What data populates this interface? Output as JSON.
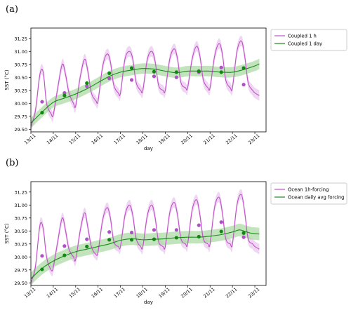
{
  "panels": [
    {
      "letter": "(a)",
      "ylabel": "SST (°C)",
      "xlabel": "day",
      "xticks": [
        "13/11",
        "14/11",
        "15/11",
        "16/11",
        "17/11",
        "18/11",
        "19/11",
        "20/11",
        "21/11",
        "22/11",
        "23/11"
      ],
      "yticks": [
        "29.50",
        "29.75",
        "30.00",
        "30.25",
        "30.50",
        "30.75",
        "31.00",
        "31.25"
      ]
    },
    {
      "letter": "(b)",
      "ylabel": "SST (°C)",
      "xlabel": "day",
      "xticks": [
        "13/11",
        "14/11",
        "15/11",
        "16/11",
        "17/11",
        "18/11",
        "19/11",
        "20/11",
        "21/11",
        "22/11",
        "23/11"
      ],
      "yticks": [
        "29.50",
        "29.75",
        "30.00",
        "30.25",
        "30.50",
        "30.75",
        "31.00",
        "31.25"
      ]
    }
  ],
  "colors": {
    "hourly": "#c050c8",
    "hourly_band": "#e9c8ee",
    "daily": "#1a8a1a",
    "daily_band": "#a8d8a0",
    "dots_daily": "#118811",
    "dots_hourly": "#b050c8"
  },
  "chart_data": [
    {
      "type": "line",
      "title": "",
      "xlabel": "day",
      "ylabel": "SST (°C)",
      "xlim": [
        13,
        23.5
      ],
      "ylim": [
        29.45,
        31.45
      ],
      "x_tick_labels": [
        "13/11",
        "14/11",
        "15/11",
        "16/11",
        "17/11",
        "18/11",
        "19/11",
        "20/11",
        "21/11",
        "22/11",
        "23/11"
      ],
      "legend_position": "right",
      "series": [
        {
          "name": "Coupled 1 h",
          "kind": "diurnal",
          "x": [
            13.0,
            13.2,
            13.4,
            13.55,
            13.7,
            13.9,
            14.0,
            14.2,
            14.4,
            14.55,
            14.7,
            14.9,
            15.0,
            15.2,
            15.4,
            15.55,
            15.7,
            15.9,
            16.0,
            16.2,
            16.4,
            16.55,
            16.7,
            16.9,
            17.0,
            17.2,
            17.4,
            17.55,
            17.7,
            17.9,
            18.0,
            18.2,
            18.4,
            18.55,
            18.7,
            18.9,
            19.0,
            19.2,
            19.4,
            19.55,
            19.7,
            19.9,
            20.0,
            20.2,
            20.4,
            20.55,
            20.7,
            20.9,
            21.0,
            21.2,
            21.4,
            21.55,
            21.7,
            21.9,
            22.0,
            22.2,
            22.4,
            22.55,
            22.7,
            22.9,
            23.0,
            23.2
          ],
          "values": [
            29.55,
            29.85,
            30.55,
            30.6,
            30.0,
            29.8,
            29.78,
            30.3,
            30.75,
            30.55,
            30.2,
            30.0,
            29.95,
            30.5,
            30.85,
            30.6,
            30.2,
            30.05,
            30.05,
            30.7,
            30.95,
            30.8,
            30.35,
            30.2,
            30.2,
            30.85,
            31.0,
            30.85,
            30.4,
            30.25,
            30.25,
            30.85,
            31.0,
            30.8,
            30.35,
            30.25,
            30.25,
            30.85,
            31.05,
            30.85,
            30.4,
            30.3,
            30.3,
            30.85,
            31.1,
            30.9,
            30.45,
            30.3,
            30.3,
            30.9,
            31.15,
            30.95,
            30.45,
            30.3,
            30.3,
            31.0,
            31.2,
            30.9,
            30.4,
            30.25,
            30.2,
            30.15
          ],
          "band": 0.1
        },
        {
          "name": "Coupled 1 day",
          "kind": "daily",
          "x": [
            13.0,
            13.5,
            14.0,
            14.5,
            15.0,
            15.5,
            16.0,
            16.5,
            17.0,
            17.5,
            18.0,
            18.5,
            19.0,
            19.5,
            20.0,
            20.5,
            21.0,
            21.5,
            22.0,
            22.5,
            23.0,
            23.2
          ],
          "values": [
            29.62,
            29.83,
            30.02,
            30.1,
            30.18,
            30.28,
            30.4,
            30.52,
            30.6,
            30.64,
            30.67,
            30.66,
            30.62,
            30.59,
            30.62,
            30.62,
            30.62,
            30.6,
            30.6,
            30.65,
            30.72,
            30.76
          ],
          "band": 0.1,
          "dots": [
            [
              13.5,
              29.82
            ],
            [
              14.5,
              30.15
            ],
            [
              15.5,
              30.39
            ],
            [
              16.5,
              30.58
            ],
            [
              17.5,
              30.68
            ],
            [
              18.5,
              30.61
            ],
            [
              19.5,
              30.6
            ],
            [
              20.5,
              30.62
            ],
            [
              21.5,
              30.6
            ],
            [
              22.5,
              30.68
            ]
          ],
          "hourly_dots": [
            [
              13.5,
              30.03
            ],
            [
              14.5,
              30.2
            ],
            [
              15.5,
              30.33
            ],
            [
              16.5,
              30.48
            ],
            [
              17.5,
              30.45
            ],
            [
              18.5,
              30.52
            ],
            [
              19.5,
              30.5
            ],
            [
              20.5,
              30.6
            ],
            [
              21.5,
              30.69
            ],
            [
              22.5,
              30.36
            ]
          ]
        }
      ]
    },
    {
      "type": "line",
      "title": "",
      "xlabel": "day",
      "ylabel": "SST (°C)",
      "xlim": [
        13,
        23.5
      ],
      "ylim": [
        29.45,
        31.45
      ],
      "x_tick_labels": [
        "13/11",
        "14/11",
        "15/11",
        "16/11",
        "17/11",
        "18/11",
        "19/11",
        "20/11",
        "21/11",
        "22/11",
        "23/11"
      ],
      "legend_position": "right",
      "series": [
        {
          "name": "Ocean 1h-forcing",
          "kind": "diurnal",
          "x": [
            13.0,
            13.2,
            13.4,
            13.55,
            13.7,
            13.9,
            14.0,
            14.2,
            14.4,
            14.55,
            14.7,
            14.9,
            15.0,
            15.2,
            15.4,
            15.55,
            15.7,
            15.9,
            16.0,
            16.2,
            16.4,
            16.55,
            16.7,
            16.9,
            17.0,
            17.2,
            17.4,
            17.55,
            17.7,
            17.9,
            18.0,
            18.2,
            18.4,
            18.55,
            18.7,
            18.9,
            19.0,
            19.2,
            19.4,
            19.55,
            19.7,
            19.9,
            20.0,
            20.2,
            20.4,
            20.55,
            20.7,
            20.9,
            21.0,
            21.2,
            21.4,
            21.55,
            21.7,
            21.9,
            22.0,
            22.2,
            22.4,
            22.55,
            22.7,
            22.9,
            23.0,
            23.2
          ],
          "values": [
            29.5,
            29.8,
            30.6,
            30.55,
            30.0,
            29.75,
            29.8,
            30.3,
            30.75,
            30.5,
            30.15,
            30.0,
            29.95,
            30.5,
            30.85,
            30.55,
            30.2,
            30.05,
            30.1,
            30.7,
            30.95,
            30.75,
            30.3,
            30.2,
            30.2,
            30.8,
            31.0,
            30.8,
            30.35,
            30.2,
            30.2,
            30.8,
            31.0,
            30.75,
            30.3,
            30.2,
            30.2,
            30.85,
            31.05,
            30.8,
            30.35,
            30.25,
            30.25,
            30.9,
            31.1,
            30.8,
            30.35,
            30.25,
            30.25,
            30.95,
            31.15,
            30.85,
            30.35,
            30.25,
            30.25,
            31.0,
            31.2,
            30.85,
            30.35,
            30.25,
            30.2,
            30.15
          ],
          "band": 0.1
        },
        {
          "name": "Ocean daily avg forcing",
          "kind": "daily",
          "x": [
            13.0,
            13.5,
            14.0,
            14.5,
            15.0,
            15.5,
            16.0,
            16.5,
            17.0,
            17.5,
            18.0,
            18.5,
            19.0,
            19.5,
            20.0,
            20.5,
            21.0,
            21.5,
            22.0,
            22.3,
            22.5,
            22.8,
            23.0,
            23.2
          ],
          "values": [
            29.58,
            29.78,
            29.92,
            30.02,
            30.1,
            30.15,
            30.2,
            30.25,
            30.32,
            30.35,
            30.33,
            30.34,
            30.35,
            30.37,
            30.38,
            30.38,
            30.4,
            30.43,
            30.48,
            30.52,
            30.5,
            30.46,
            30.45,
            30.44
          ],
          "band": 0.12,
          "dots": [
            [
              13.5,
              29.76
            ],
            [
              14.5,
              30.03
            ],
            [
              15.5,
              30.2
            ],
            [
              16.5,
              30.33
            ],
            [
              17.5,
              30.33
            ],
            [
              18.5,
              30.34
            ],
            [
              19.5,
              30.37
            ],
            [
              20.5,
              30.39
            ],
            [
              21.5,
              30.49
            ],
            [
              22.5,
              30.46
            ]
          ],
          "hourly_dots": [
            [
              13.5,
              30.02
            ],
            [
              14.5,
              30.21
            ],
            [
              15.5,
              30.34
            ],
            [
              16.5,
              30.48
            ],
            [
              17.5,
              30.47
            ],
            [
              18.5,
              30.52
            ],
            [
              19.5,
              30.52
            ],
            [
              20.5,
              30.61
            ],
            [
              21.5,
              30.67
            ],
            [
              22.5,
              30.38
            ]
          ]
        }
      ]
    }
  ]
}
